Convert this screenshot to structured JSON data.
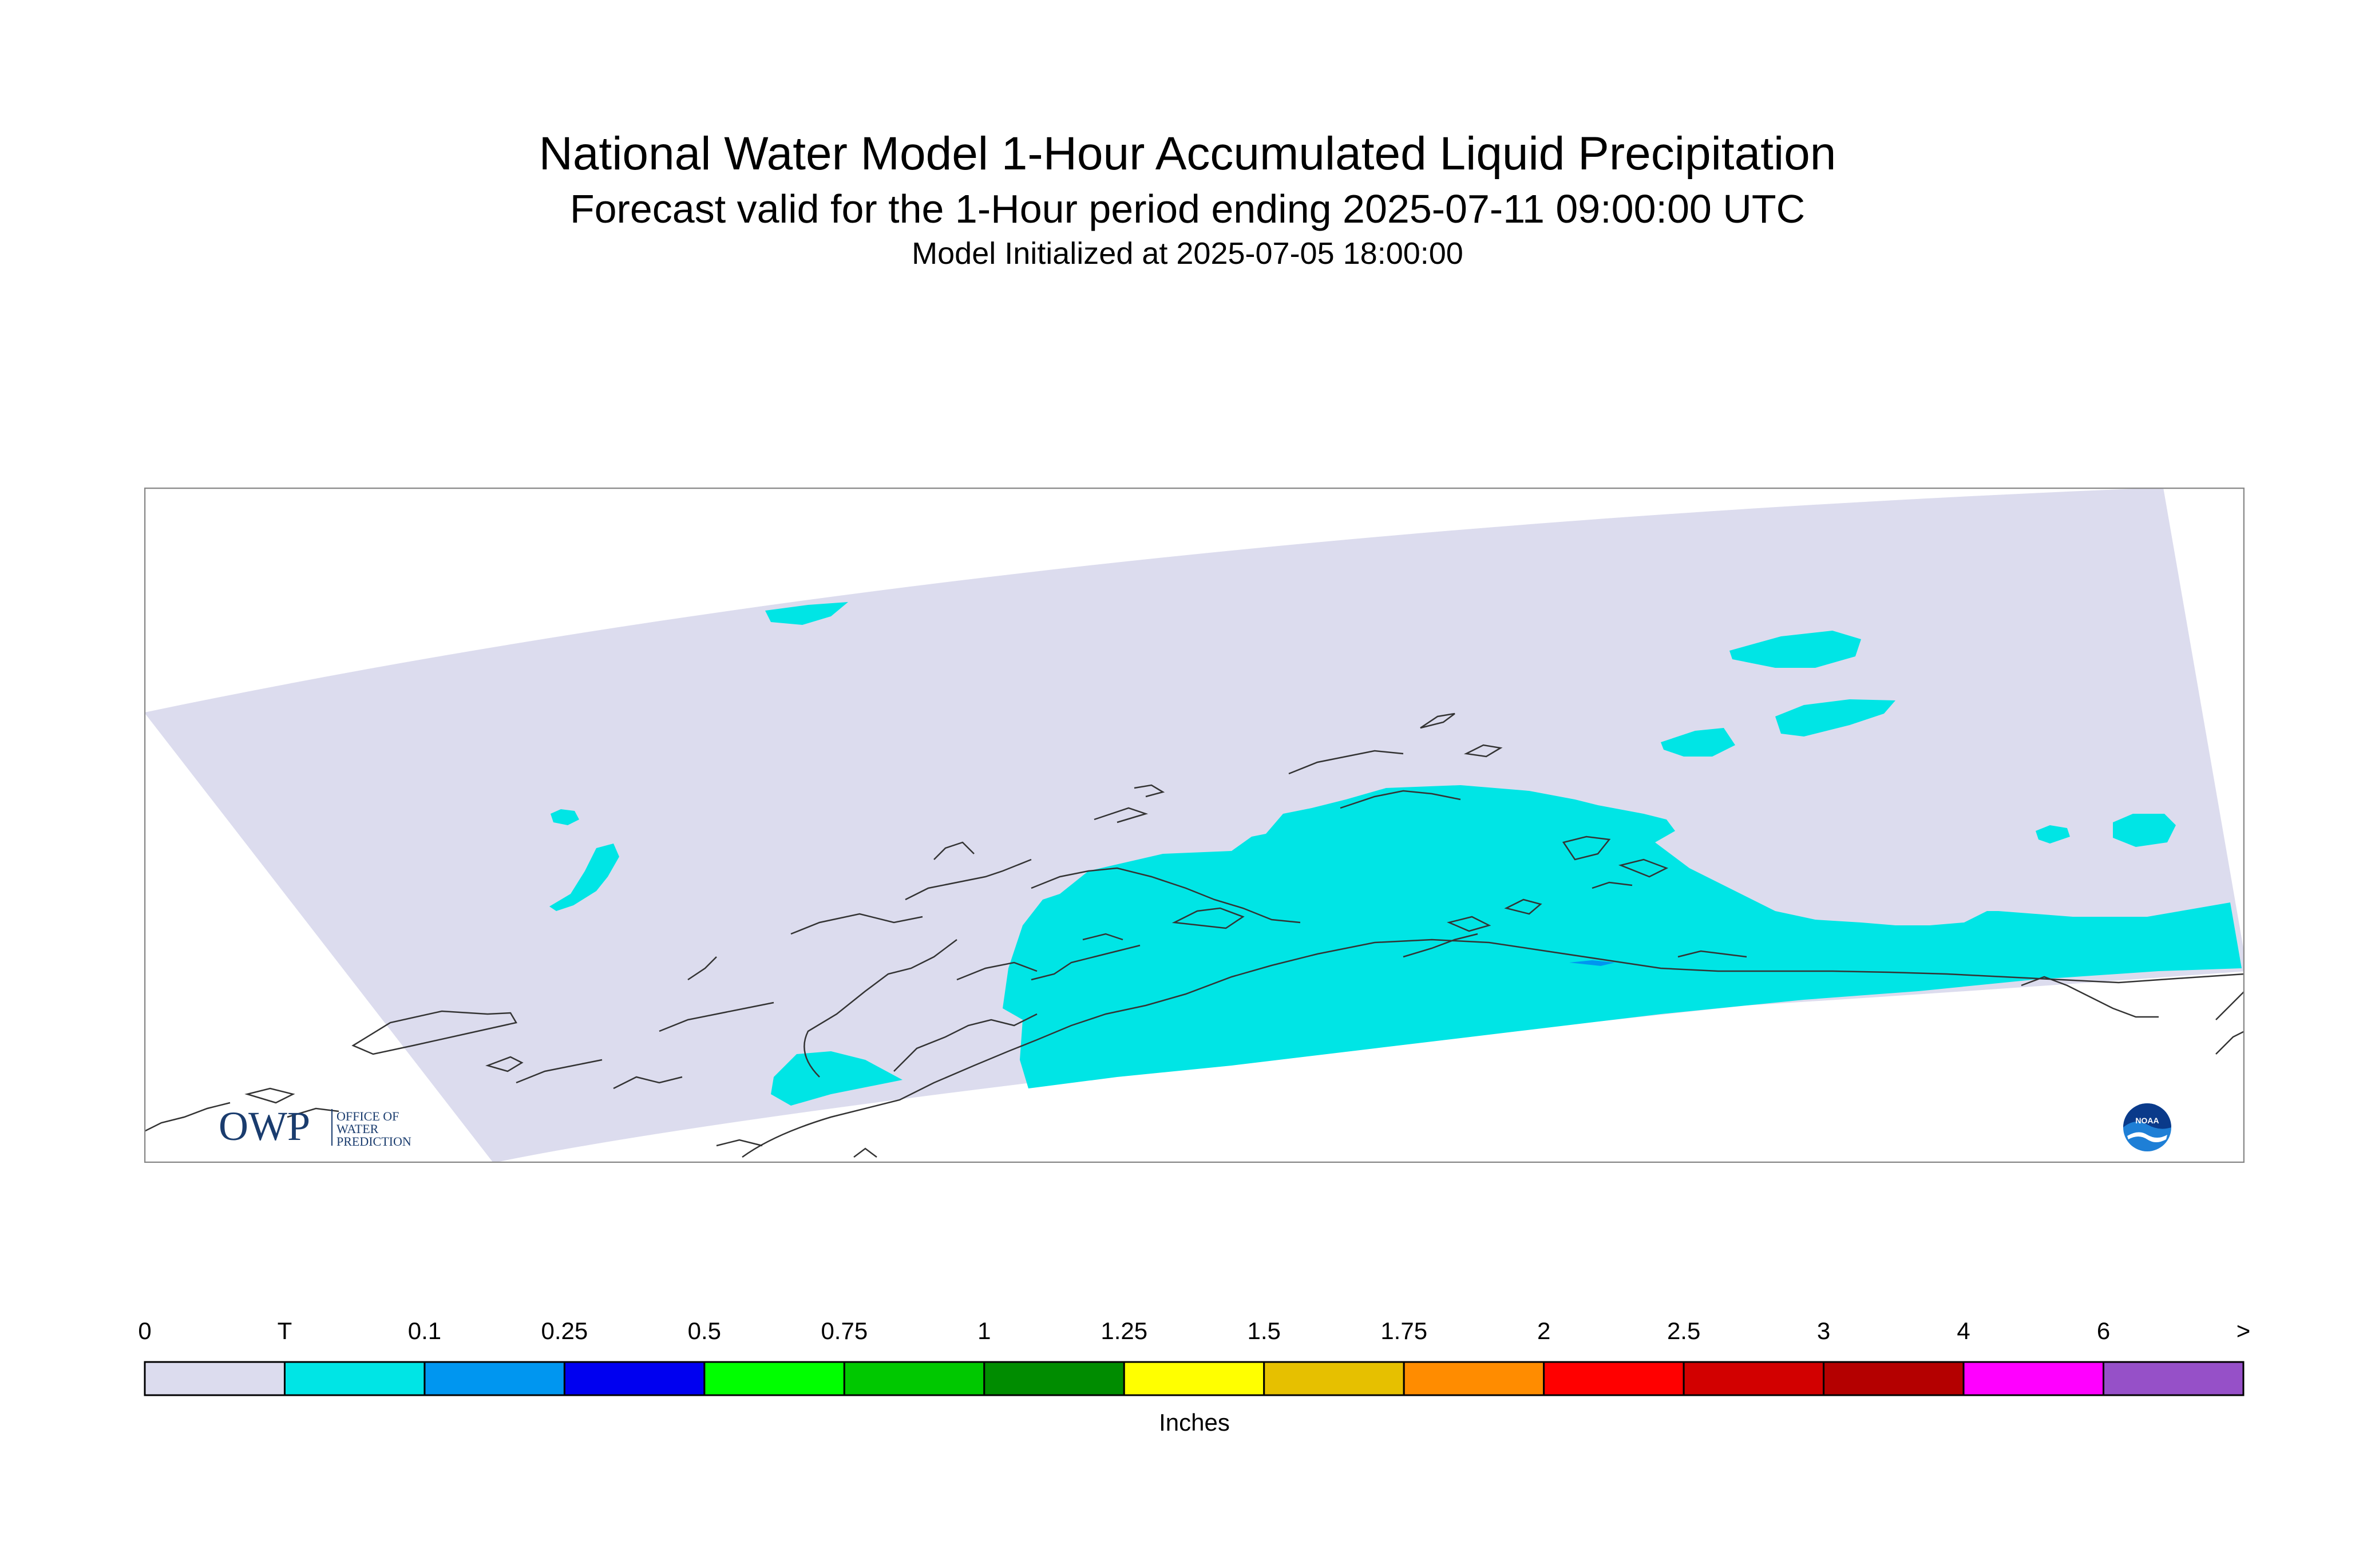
{
  "header": {
    "title": "National Water Model 1-Hour Accumulated Liquid Precipitation",
    "subtitle": "Forecast valid for the 1-Hour period ending 2025-07-11 09:00:00 UTC",
    "init": "Model Initialized at 2025-07-05 18:00:00"
  },
  "colors": {
    "domain_fill": "#dcdcee",
    "trace_fill": "#00e5e5",
    "coastline": "#333333",
    "frame": "#888888"
  },
  "legend": {
    "unit_label": "Inches",
    "tick_labels": [
      "0",
      "T",
      "0.1",
      "0.25",
      "0.5",
      "0.75",
      "1",
      "1.25",
      "1.5",
      "1.75",
      "2",
      "2.5",
      "3",
      "4",
      "6",
      ">"
    ],
    "bin_colors": [
      "#dcdcee",
      "#00e5e5",
      "#0096f0",
      "#0000f0",
      "#00ff00",
      "#00c800",
      "#008c00",
      "#ffff00",
      "#e6c000",
      "#ff8c00",
      "#ff0000",
      "#d20000",
      "#b40000",
      "#ff00ff",
      "#9650c8"
    ]
  },
  "logos": {
    "owp_mark": "OWP",
    "owp_text": [
      "OFFICE OF",
      "WATER",
      "PREDICTION"
    ],
    "noaa_mark": "NOAA"
  }
}
